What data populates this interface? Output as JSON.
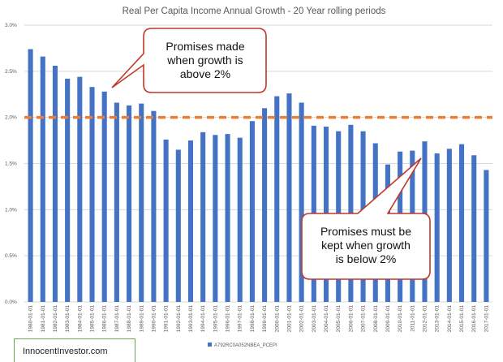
{
  "chart_data": {
    "type": "bar",
    "title": "Real Per Capita Income Annual Growth - 20 Year rolling periods",
    "xlabel": "",
    "ylabel": "",
    "ylim": [
      0,
      3.0
    ],
    "yticks": [
      "0.0%",
      "0.5%",
      "1.0%",
      "1.5%",
      "2.0%",
      "2.5%",
      "3.0%"
    ],
    "categories": [
      "1980-01-01",
      "1981-01-01",
      "1982-01-01",
      "1983-01-01",
      "1984-01-01",
      "1985-01-01",
      "1986-01-01",
      "1987-01-01",
      "1988-01-01",
      "1989-01-01",
      "1990-01-01",
      "1991-01-01",
      "1992-01-01",
      "1993-01-01",
      "1994-01-01",
      "1995-01-01",
      "1996-01-01",
      "1997-01-01",
      "1998-01-01",
      "1999-01-01",
      "2000-01-01",
      "2001-01-01",
      "2002-01-01",
      "2003-01-01",
      "2004-01-01",
      "2005-01-01",
      "2006-01-01",
      "2007-01-01",
      "2008-01-01",
      "2009-01-01",
      "2010-01-01",
      "2011-01-01",
      "2012-01-01",
      "2013-01-01",
      "2014-01-01",
      "2015-01-01",
      "2016-01-01",
      "2017-01-01"
    ],
    "series": [
      {
        "name": "A792RC0A052NBEA_PCEPI",
        "color": "#4472c4",
        "values": [
          2.74,
          2.66,
          2.56,
          2.42,
          2.44,
          2.33,
          2.28,
          2.16,
          2.13,
          2.15,
          2.07,
          1.76,
          1.65,
          1.75,
          1.84,
          1.81,
          1.82,
          1.78,
          1.96,
          2.1,
          2.23,
          2.26,
          2.16,
          1.91,
          1.9,
          1.85,
          1.92,
          1.85,
          1.72,
          1.49,
          1.63,
          1.64,
          1.74,
          1.61,
          1.66,
          1.71,
          1.59,
          1.43
        ]
      }
    ],
    "reference_line": {
      "value": 2.0,
      "color": "#ed7d31",
      "style": "dashed"
    },
    "grid": true,
    "legend": "bottom"
  },
  "annotations": {
    "top": [
      "Promises made",
      "when growth is",
      "above 2%"
    ],
    "bottom": [
      "Promises must be",
      "kept when growth",
      "is below 2%"
    ]
  },
  "credit": "InnocentInvestor.com",
  "colors": {
    "callout_fill": "#ffffff",
    "callout_border": "#c0392b",
    "credit_border": "#6aa84f",
    "gridline": "#d9d9d9"
  }
}
